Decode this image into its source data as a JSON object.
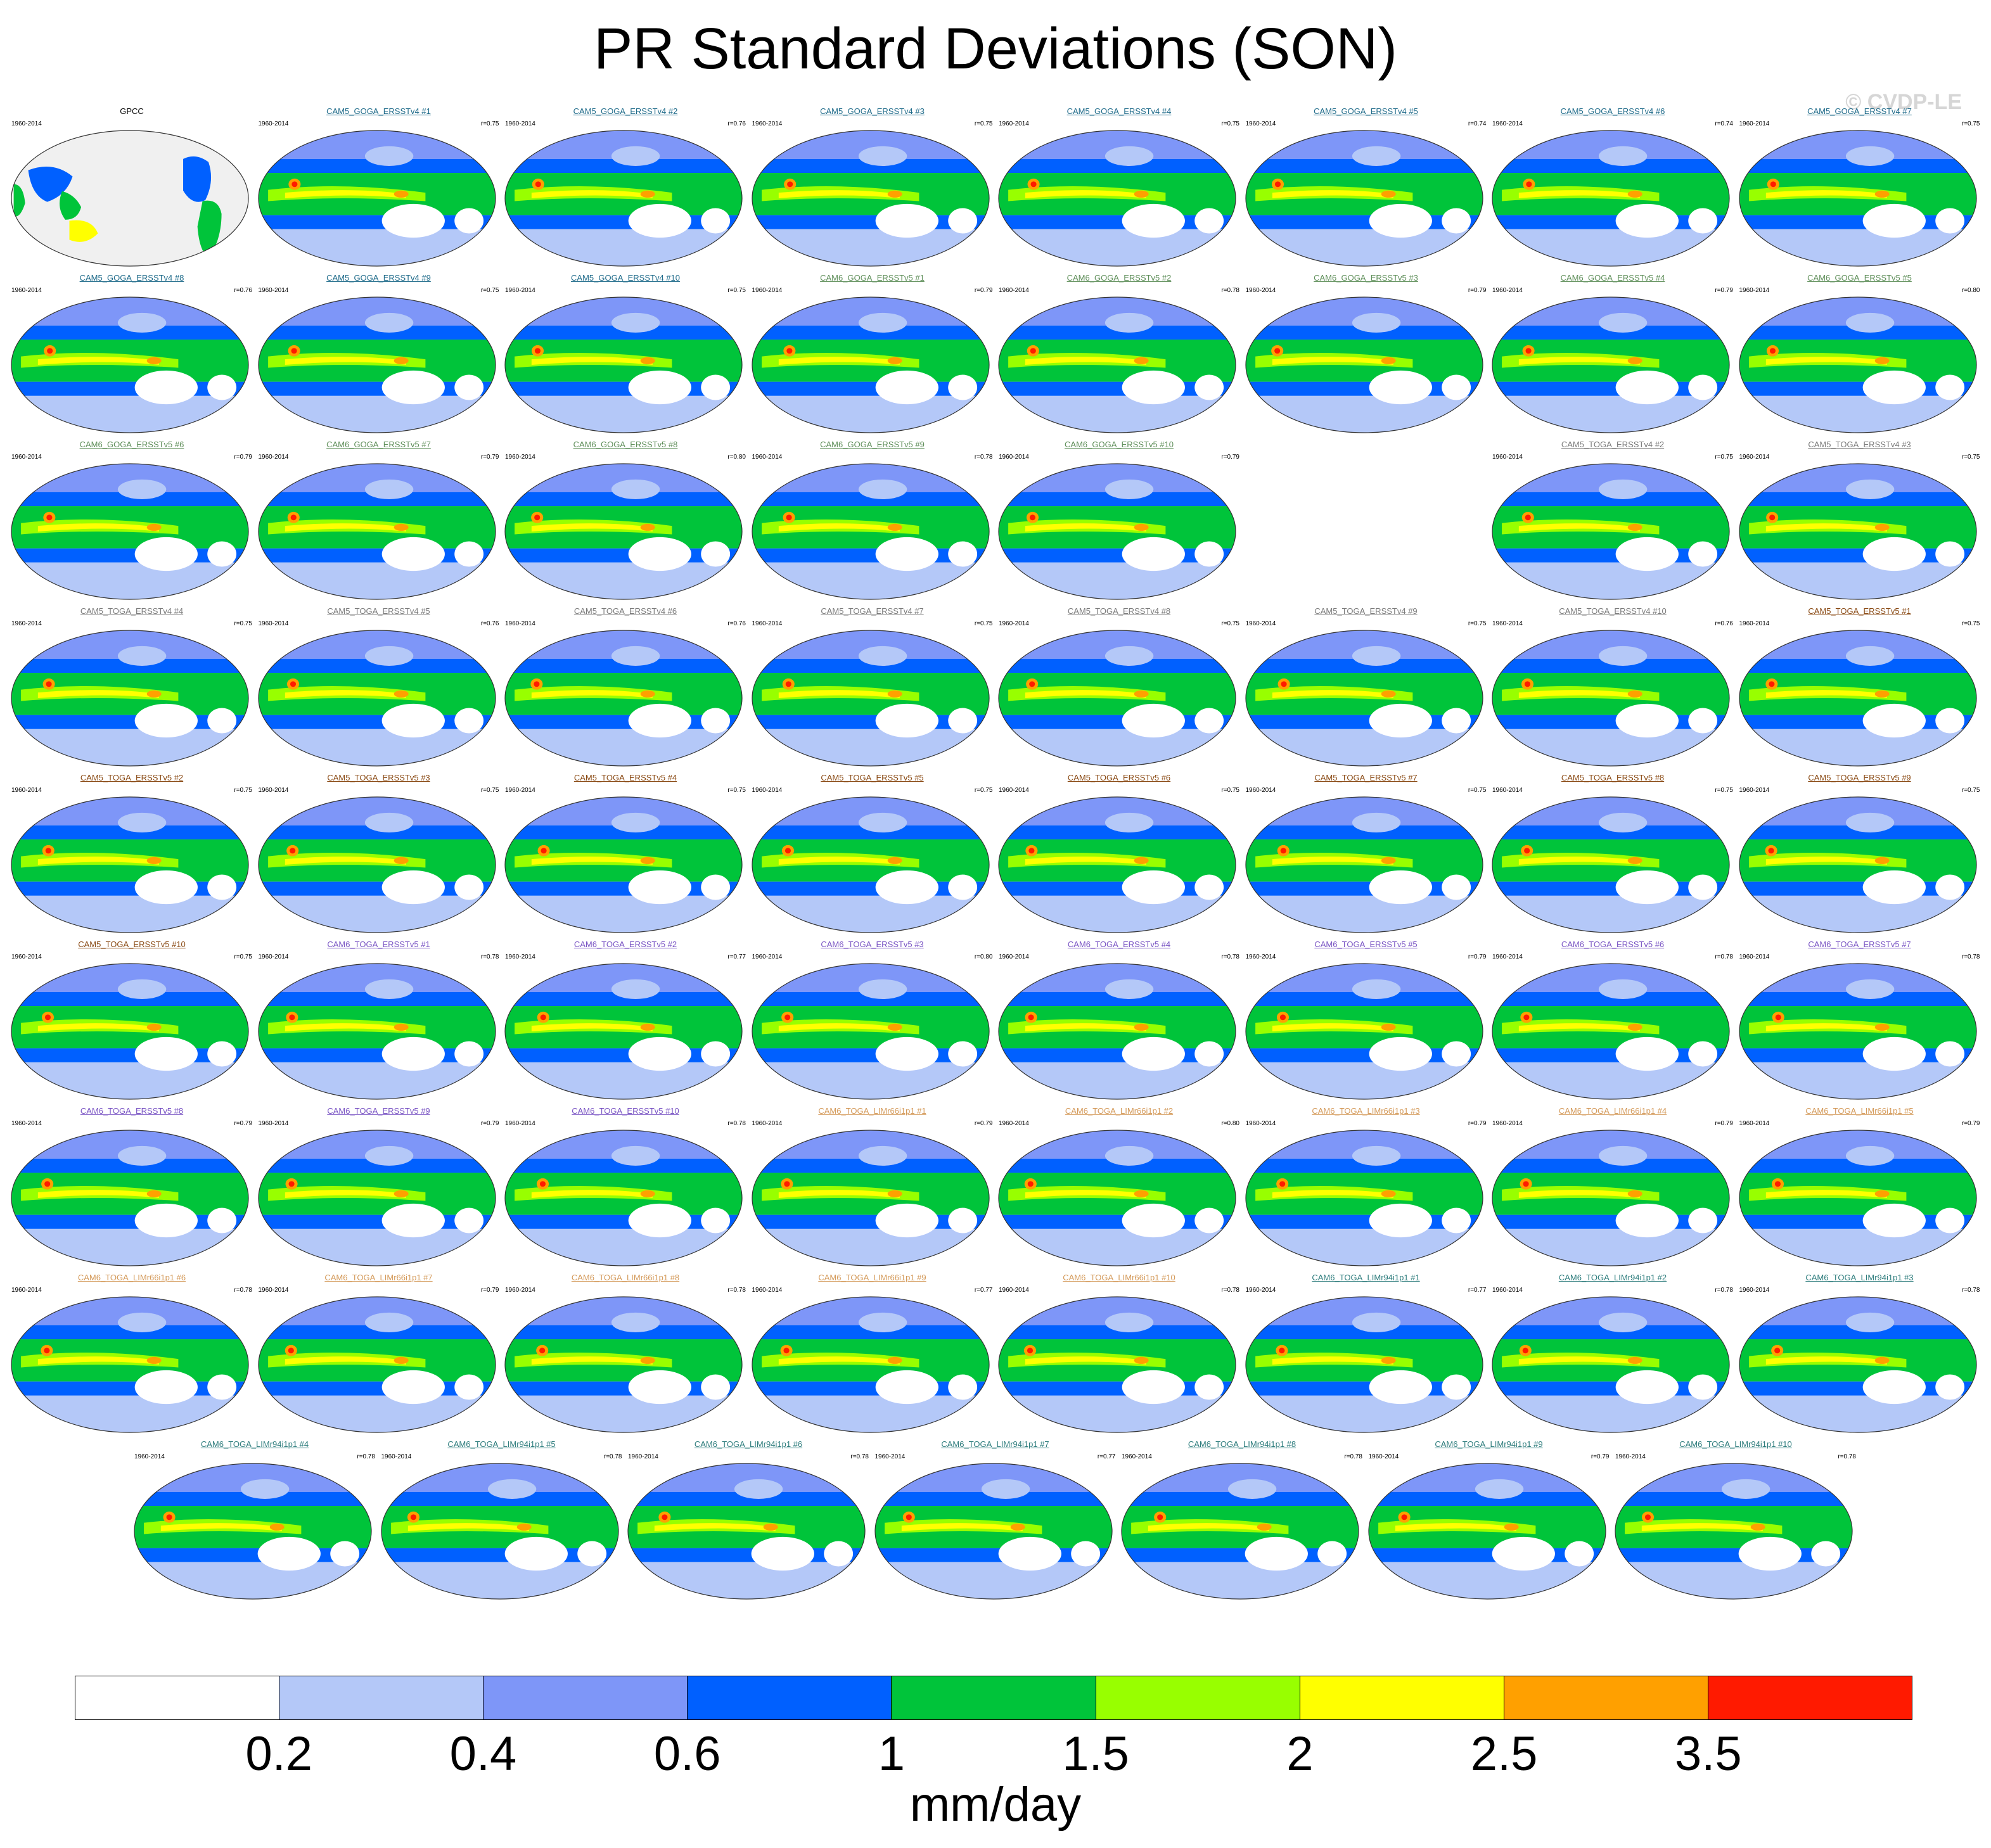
{
  "title": "PR Standard Deviations (SON)",
  "watermark": "© CVDP-LE",
  "colors": {
    "ocean_fill": "#f0f0f0",
    "tropics_high": "#ff1a00",
    "member_title_colors": {
      "CAM5_GOGA_ERSSTv4": "#1f6b8a",
      "CAM6_GOGA_ERSSTv5": "#5f8f5a",
      "CAM5_TOGA_ERSSTv4": "#7a7a7a",
      "CAM5_TOGA_ERSSTv5": "#8a4a14",
      "CAM6_TOGA_ERSSTv5": "#7a55c4",
      "CAM6_TOGA_LIMr66i1p1": "#d49a5a",
      "CAM6_TOGA_LIMr94i1p1": "#2e7d7d"
    }
  },
  "colorbar": {
    "colors": [
      "#ffffff",
      "#b4c8f8",
      "#7e96f8",
      "#0060ff",
      "#00c43a",
      "#98ff00",
      "#ffff00",
      "#ffa000",
      "#ff1a00"
    ],
    "labels": [
      "0.2",
      "0.4",
      "0.6",
      "1",
      "1.5",
      "2",
      "2.5",
      "3.5"
    ],
    "units": "mm/day"
  },
  "panels": [
    {
      "title": "GPCC",
      "years": "1960-2014",
      "r": "",
      "kind": "obs"
    },
    {
      "title": "CAM5_GOGA_ERSSTv4 #1",
      "years": "1960-2014",
      "r": "r=0.75",
      "group": "CAM5_GOGA_ERSSTv4"
    },
    {
      "title": "CAM5_GOGA_ERSSTv4 #2",
      "years": "1960-2014",
      "r": "r=0.76",
      "group": "CAM5_GOGA_ERSSTv4"
    },
    {
      "title": "CAM5_GOGA_ERSSTv4 #3",
      "years": "1960-2014",
      "r": "r=0.75",
      "group": "CAM5_GOGA_ERSSTv4"
    },
    {
      "title": "CAM5_GOGA_ERSSTv4 #4",
      "years": "1960-2014",
      "r": "r=0.75",
      "group": "CAM5_GOGA_ERSSTv4"
    },
    {
      "title": "CAM5_GOGA_ERSSTv4 #5",
      "years": "1960-2014",
      "r": "r=0.74",
      "group": "CAM5_GOGA_ERSSTv4"
    },
    {
      "title": "CAM5_GOGA_ERSSTv4 #6",
      "years": "1960-2014",
      "r": "r=0.74",
      "group": "CAM5_GOGA_ERSSTv4"
    },
    {
      "title": "CAM5_GOGA_ERSSTv4 #7",
      "years": "1960-2014",
      "r": "r=0.75",
      "group": "CAM5_GOGA_ERSSTv4"
    },
    {
      "title": "CAM5_GOGA_ERSSTv4 #8",
      "years": "1960-2014",
      "r": "r=0.76",
      "group": "CAM5_GOGA_ERSSTv4"
    },
    {
      "title": "CAM5_GOGA_ERSSTv4 #9",
      "years": "1960-2014",
      "r": "r=0.75",
      "group": "CAM5_GOGA_ERSSTv4"
    },
    {
      "title": "CAM5_GOGA_ERSSTv4 #10",
      "years": "1960-2014",
      "r": "r=0.75",
      "group": "CAM5_GOGA_ERSSTv4"
    },
    {
      "title": "CAM6_GOGA_ERSSTv5 #1",
      "years": "1960-2014",
      "r": "r=0.79",
      "group": "CAM6_GOGA_ERSSTv5"
    },
    {
      "title": "CAM6_GOGA_ERSSTv5 #2",
      "years": "1960-2014",
      "r": "r=0.78",
      "group": "CAM6_GOGA_ERSSTv5"
    },
    {
      "title": "CAM6_GOGA_ERSSTv5 #3",
      "years": "1960-2014",
      "r": "r=0.79",
      "group": "CAM6_GOGA_ERSSTv5"
    },
    {
      "title": "CAM6_GOGA_ERSSTv5 #4",
      "years": "1960-2014",
      "r": "r=0.79",
      "group": "CAM6_GOGA_ERSSTv5"
    },
    {
      "title": "CAM6_GOGA_ERSSTv5 #5",
      "years": "1960-2014",
      "r": "r=0.80",
      "group": "CAM6_GOGA_ERSSTv5"
    },
    {
      "title": "CAM6_GOGA_ERSSTv5 #6",
      "years": "1960-2014",
      "r": "r=0.79",
      "group": "CAM6_GOGA_ERSSTv5"
    },
    {
      "title": "CAM6_GOGA_ERSSTv5 #7",
      "years": "1960-2014",
      "r": "r=0.79",
      "group": "CAM6_GOGA_ERSSTv5"
    },
    {
      "title": "CAM6_GOGA_ERSSTv5 #8",
      "years": "1960-2014",
      "r": "r=0.80",
      "group": "CAM6_GOGA_ERSSTv5"
    },
    {
      "title": "CAM6_GOGA_ERSSTv5 #9",
      "years": "1960-2014",
      "r": "r=0.78",
      "group": "CAM6_GOGA_ERSSTv5"
    },
    {
      "title": "CAM6_GOGA_ERSSTv5 #10",
      "years": "1960-2014",
      "r": "r=0.79",
      "group": "CAM6_GOGA_ERSSTv5"
    },
    {
      "kind": "empty"
    },
    {
      "title": "CAM5_TOGA_ERSSTv4 #2",
      "years": "1960-2014",
      "r": "r=0.75",
      "group": "CAM5_TOGA_ERSSTv4"
    },
    {
      "title": "CAM5_TOGA_ERSSTv4 #3",
      "years": "1960-2014",
      "r": "r=0.75",
      "group": "CAM5_TOGA_ERSSTv4"
    },
    {
      "title": "CAM5_TOGA_ERSSTv4 #4",
      "years": "1960-2014",
      "r": "r=0.75",
      "group": "CAM5_TOGA_ERSSTv4"
    },
    {
      "title": "CAM5_TOGA_ERSSTv4 #5",
      "years": "1960-2014",
      "r": "r=0.76",
      "group": "CAM5_TOGA_ERSSTv4"
    },
    {
      "title": "CAM5_TOGA_ERSSTv4 #6",
      "years": "1960-2014",
      "r": "r=0.76",
      "group": "CAM5_TOGA_ERSSTv4"
    },
    {
      "title": "CAM5_TOGA_ERSSTv4 #7",
      "years": "1960-2014",
      "r": "r=0.75",
      "group": "CAM5_TOGA_ERSSTv4"
    },
    {
      "title": "CAM5_TOGA_ERSSTv4 #8",
      "years": "1960-2014",
      "r": "r=0.75",
      "group": "CAM5_TOGA_ERSSTv4"
    },
    {
      "title": "CAM5_TOGA_ERSSTv4 #9",
      "years": "1960-2014",
      "r": "r=0.75",
      "group": "CAM5_TOGA_ERSSTv4"
    },
    {
      "title": "CAM5_TOGA_ERSSTv4 #10",
      "years": "1960-2014",
      "r": "r=0.76",
      "group": "CAM5_TOGA_ERSSTv4"
    },
    {
      "title": "CAM5_TOGA_ERSSTv5 #1",
      "years": "1960-2014",
      "r": "r=0.75",
      "group": "CAM5_TOGA_ERSSTv5"
    },
    {
      "title": "CAM5_TOGA_ERSSTv5 #2",
      "years": "1960-2014",
      "r": "r=0.75",
      "group": "CAM5_TOGA_ERSSTv5"
    },
    {
      "title": "CAM5_TOGA_ERSSTv5 #3",
      "years": "1960-2014",
      "r": "r=0.75",
      "group": "CAM5_TOGA_ERSSTv5"
    },
    {
      "title": "CAM5_TOGA_ERSSTv5 #4",
      "years": "1960-2014",
      "r": "r=0.75",
      "group": "CAM5_TOGA_ERSSTv5"
    },
    {
      "title": "CAM5_TOGA_ERSSTv5 #5",
      "years": "1960-2014",
      "r": "r=0.75",
      "group": "CAM5_TOGA_ERSSTv5"
    },
    {
      "title": "CAM5_TOGA_ERSSTv5 #6",
      "years": "1960-2014",
      "r": "r=0.75",
      "group": "CAM5_TOGA_ERSSTv5"
    },
    {
      "title": "CAM5_TOGA_ERSSTv5 #7",
      "years": "1960-2014",
      "r": "r=0.75",
      "group": "CAM5_TOGA_ERSSTv5"
    },
    {
      "title": "CAM5_TOGA_ERSSTv5 #8",
      "years": "1960-2014",
      "r": "r=0.75",
      "group": "CAM5_TOGA_ERSSTv5"
    },
    {
      "title": "CAM5_TOGA_ERSSTv5 #9",
      "years": "1960-2014",
      "r": "r=0.75",
      "group": "CAM5_TOGA_ERSSTv5"
    },
    {
      "title": "CAM5_TOGA_ERSSTv5 #10",
      "years": "1960-2014",
      "r": "r=0.75",
      "group": "CAM5_TOGA_ERSSTv5"
    },
    {
      "title": "CAM6_TOGA_ERSSTv5 #1",
      "years": "1960-2014",
      "r": "r=0.78",
      "group": "CAM6_TOGA_ERSSTv5"
    },
    {
      "title": "CAM6_TOGA_ERSSTv5 #2",
      "years": "1960-2014",
      "r": "r=0.77",
      "group": "CAM6_TOGA_ERSSTv5"
    },
    {
      "title": "CAM6_TOGA_ERSSTv5 #3",
      "years": "1960-2014",
      "r": "r=0.80",
      "group": "CAM6_TOGA_ERSSTv5"
    },
    {
      "title": "CAM6_TOGA_ERSSTv5 #4",
      "years": "1960-2014",
      "r": "r=0.78",
      "group": "CAM6_TOGA_ERSSTv5"
    },
    {
      "title": "CAM6_TOGA_ERSSTv5 #5",
      "years": "1960-2014",
      "r": "r=0.79",
      "group": "CAM6_TOGA_ERSSTv5"
    },
    {
      "title": "CAM6_TOGA_ERSSTv5 #6",
      "years": "1960-2014",
      "r": "r=0.78",
      "group": "CAM6_TOGA_ERSSTv5"
    },
    {
      "title": "CAM6_TOGA_ERSSTv5 #7",
      "years": "1960-2014",
      "r": "r=0.78",
      "group": "CAM6_TOGA_ERSSTv5"
    },
    {
      "title": "CAM6_TOGA_ERSSTv5 #8",
      "years": "1960-2014",
      "r": "r=0.79",
      "group": "CAM6_TOGA_ERSSTv5"
    },
    {
      "title": "CAM6_TOGA_ERSSTv5 #9",
      "years": "1960-2014",
      "r": "r=0.79",
      "group": "CAM6_TOGA_ERSSTv5"
    },
    {
      "title": "CAM6_TOGA_ERSSTv5 #10",
      "years": "1960-2014",
      "r": "r=0.78",
      "group": "CAM6_TOGA_ERSSTv5"
    },
    {
      "title": "CAM6_TOGA_LIMr66i1p1 #1",
      "years": "1960-2014",
      "r": "r=0.79",
      "group": "CAM6_TOGA_LIMr66i1p1"
    },
    {
      "title": "CAM6_TOGA_LIMr66i1p1 #2",
      "years": "1960-2014",
      "r": "r=0.80",
      "group": "CAM6_TOGA_LIMr66i1p1"
    },
    {
      "title": "CAM6_TOGA_LIMr66i1p1 #3",
      "years": "1960-2014",
      "r": "r=0.79",
      "group": "CAM6_TOGA_LIMr66i1p1"
    },
    {
      "title": "CAM6_TOGA_LIMr66i1p1 #4",
      "years": "1960-2014",
      "r": "r=0.79",
      "group": "CAM6_TOGA_LIMr66i1p1"
    },
    {
      "title": "CAM6_TOGA_LIMr66i1p1 #5",
      "years": "1960-2014",
      "r": "r=0.79",
      "group": "CAM6_TOGA_LIMr66i1p1"
    },
    {
      "title": "CAM6_TOGA_LIMr66i1p1 #6",
      "years": "1960-2014",
      "r": "r=0.78",
      "group": "CAM6_TOGA_LIMr66i1p1"
    },
    {
      "title": "CAM6_TOGA_LIMr66i1p1 #7",
      "years": "1960-2014",
      "r": "r=0.79",
      "group": "CAM6_TOGA_LIMr66i1p1"
    },
    {
      "title": "CAM6_TOGA_LIMr66i1p1 #8",
      "years": "1960-2014",
      "r": "r=0.78",
      "group": "CAM6_TOGA_LIMr66i1p1"
    },
    {
      "title": "CAM6_TOGA_LIMr66i1p1 #9",
      "years": "1960-2014",
      "r": "r=0.77",
      "group": "CAM6_TOGA_LIMr66i1p1"
    },
    {
      "title": "CAM6_TOGA_LIMr66i1p1 #10",
      "years": "1960-2014",
      "r": "r=0.78",
      "group": "CAM6_TOGA_LIMr66i1p1"
    },
    {
      "title": "CAM6_TOGA_LIMr94i1p1 #1",
      "years": "1960-2014",
      "r": "r=0.77",
      "group": "CAM6_TOGA_LIMr94i1p1"
    },
    {
      "title": "CAM6_TOGA_LIMr94i1p1 #2",
      "years": "1960-2014",
      "r": "r=0.78",
      "group": "CAM6_TOGA_LIMr94i1p1"
    },
    {
      "title": "CAM6_TOGA_LIMr94i1p1 #3",
      "years": "1960-2014",
      "r": "r=0.78",
      "group": "CAM6_TOGA_LIMr94i1p1"
    },
    {
      "title": "CAM6_TOGA_LIMr94i1p1 #4",
      "years": "1960-2014",
      "r": "r=0.78",
      "group": "CAM6_TOGA_LIMr94i1p1"
    },
    {
      "title": "CAM6_TOGA_LIMr94i1p1 #5",
      "years": "1960-2014",
      "r": "r=0.78",
      "group": "CAM6_TOGA_LIMr94i1p1"
    },
    {
      "title": "CAM6_TOGA_LIMr94i1p1 #6",
      "years": "1960-2014",
      "r": "r=0.78",
      "group": "CAM6_TOGA_LIMr94i1p1"
    },
    {
      "title": "CAM6_TOGA_LIMr94i1p1 #7",
      "years": "1960-2014",
      "r": "r=0.77",
      "group": "CAM6_TOGA_LIMr94i1p1"
    },
    {
      "title": "CAM6_TOGA_LIMr94i1p1 #8",
      "years": "1960-2014",
      "r": "r=0.78",
      "group": "CAM6_TOGA_LIMr94i1p1"
    },
    {
      "title": "CAM6_TOGA_LIMr94i1p1 #9",
      "years": "1960-2014",
      "r": "r=0.79",
      "group": "CAM6_TOGA_LIMr94i1p1"
    },
    {
      "title": "CAM6_TOGA_LIMr94i1p1 #10",
      "years": "1960-2014",
      "r": "r=0.78",
      "group": "CAM6_TOGA_LIMr94i1p1"
    }
  ]
}
